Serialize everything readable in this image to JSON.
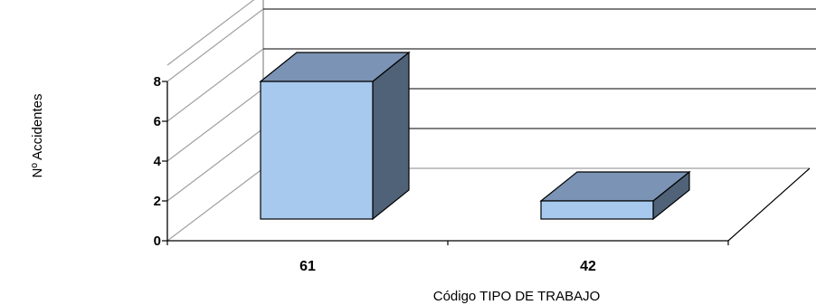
{
  "chart_data": {
    "type": "bar",
    "title": "",
    "xlabel": "Código TIPO DE TRABAJO",
    "ylabel": "Nº Accidentes",
    "categories": [
      "61",
      "42"
    ],
    "values": [
      8,
      2
    ],
    "ylim": [
      0,
      8
    ],
    "yticks": [
      "0",
      "2",
      "4",
      "6",
      "8"
    ],
    "grid": true,
    "legend": "none",
    "colors": {
      "bar_front": "#a7c9ee",
      "bar_top": "#7b93b4",
      "bar_side": "#4f6278",
      "grid": "#000000",
      "wall": "#a0a0a0"
    }
  }
}
